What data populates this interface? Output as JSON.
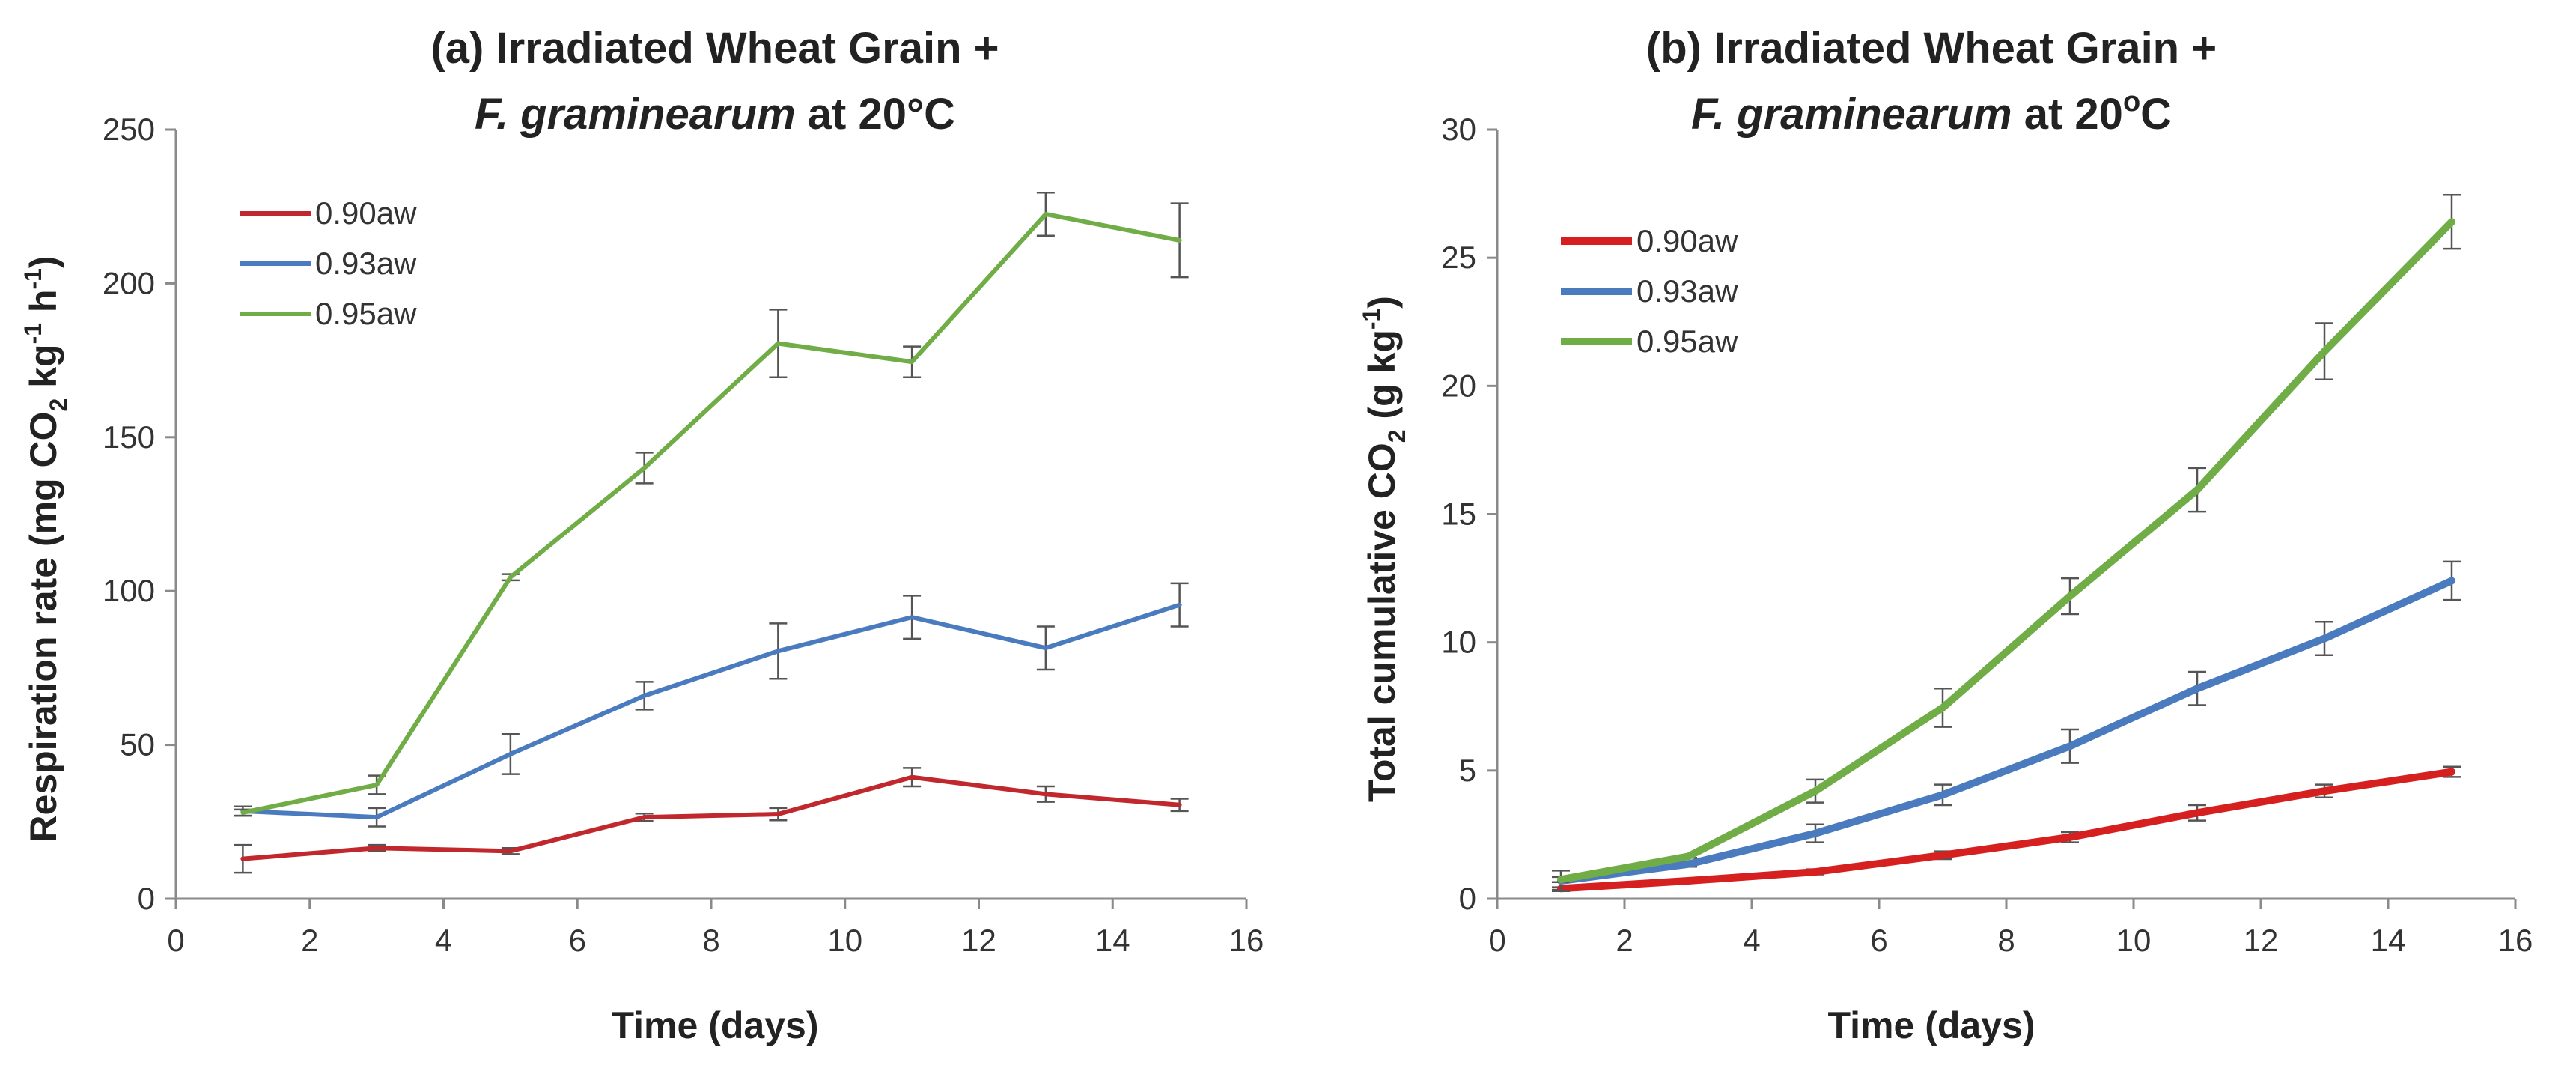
{
  "chart_data": [
    {
      "type": "line",
      "title_line1": "(a) Irradiated Wheat Grain +",
      "title_line2_italic": "F. graminearum",
      "title_line2_rest": " at 20°C",
      "xlabel": "Time (days)",
      "ylabel": {
        "main": "Respiration rate (mg CO",
        "sub": "2",
        "mid": " kg",
        "sup1": "-1",
        "mid2": " h",
        "sup2": "-1",
        "end": ")"
      },
      "xlim": [
        0,
        16
      ],
      "ylim": [
        0,
        250
      ],
      "xticks": [
        0,
        2,
        4,
        6,
        8,
        10,
        12,
        14,
        16
      ],
      "yticks": [
        0,
        50,
        100,
        150,
        200,
        250
      ],
      "x": [
        1,
        3,
        5,
        7,
        9,
        11,
        13,
        15
      ],
      "legend_position": "top-left",
      "series": [
        {
          "name": "0.90aw",
          "color": "#c0282d",
          "values": [
            13,
            16.5,
            15.5,
            26.5,
            27.5,
            39.5,
            34,
            30.5
          ],
          "errors": [
            4.5,
            1,
            1,
            1.2,
            2,
            3,
            2.5,
            2
          ]
        },
        {
          "name": "0.93aw",
          "color": "#4a7bbf",
          "values": [
            28.5,
            26.5,
            47,
            66,
            80.5,
            91.5,
            81.5,
            95.5
          ],
          "errors": [
            1.5,
            3,
            6.5,
            4.5,
            9,
            7,
            7,
            7
          ]
        },
        {
          "name": "0.95aw",
          "color": "#70ad47",
          "values": [
            28,
            37,
            104.5,
            140,
            180.5,
            174.5,
            222.5,
            214
          ],
          "errors": [
            1,
            3,
            1,
            5,
            11,
            5,
            7,
            12
          ]
        }
      ]
    },
    {
      "type": "line",
      "title_line1": "(b) Irradiated Wheat Grain +",
      "title_line2_italic": "F. graminearum",
      "title_line2_rest": " at 20",
      "title_sup": "o",
      "title_end": "C",
      "xlabel": "Time (days)",
      "ylabel": {
        "main": "Total cumulative CO",
        "sub": "2",
        "mid": " (g kg",
        "sup1": "-1",
        "end": ")"
      },
      "xlim": [
        0,
        16
      ],
      "ylim": [
        0,
        30
      ],
      "xticks": [
        0,
        2,
        4,
        6,
        8,
        10,
        12,
        14,
        16
      ],
      "yticks": [
        0,
        5,
        10,
        15,
        20,
        25,
        30
      ],
      "x": [
        1,
        3,
        5,
        7,
        9,
        11,
        13,
        15
      ],
      "legend_position": "top-left",
      "series": [
        {
          "name": "0.90aw",
          "color": "#d62020",
          "values": [
            0.4,
            0.7,
            1.05,
            1.7,
            2.4,
            3.35,
            4.2,
            4.95
          ],
          "errors": [
            0.05,
            0.05,
            0.1,
            0.15,
            0.2,
            0.3,
            0.25,
            0.2
          ]
        },
        {
          "name": "0.93aw",
          "color": "#4a7bbf",
          "values": [
            0.7,
            1.35,
            2.55,
            4.05,
            5.95,
            8.2,
            10.15,
            12.4
          ],
          "errors": [
            0.4,
            0.1,
            0.35,
            0.4,
            0.65,
            0.65,
            0.65,
            0.75
          ]
        },
        {
          "name": "0.95aw",
          "color": "#70ad47",
          "values": [
            0.75,
            1.65,
            4.2,
            7.45,
            11.8,
            15.95,
            21.35,
            26.4
          ],
          "errors": [
            0.1,
            0.05,
            0.45,
            0.75,
            0.7,
            0.85,
            1.1,
            1.05
          ]
        }
      ]
    }
  ]
}
